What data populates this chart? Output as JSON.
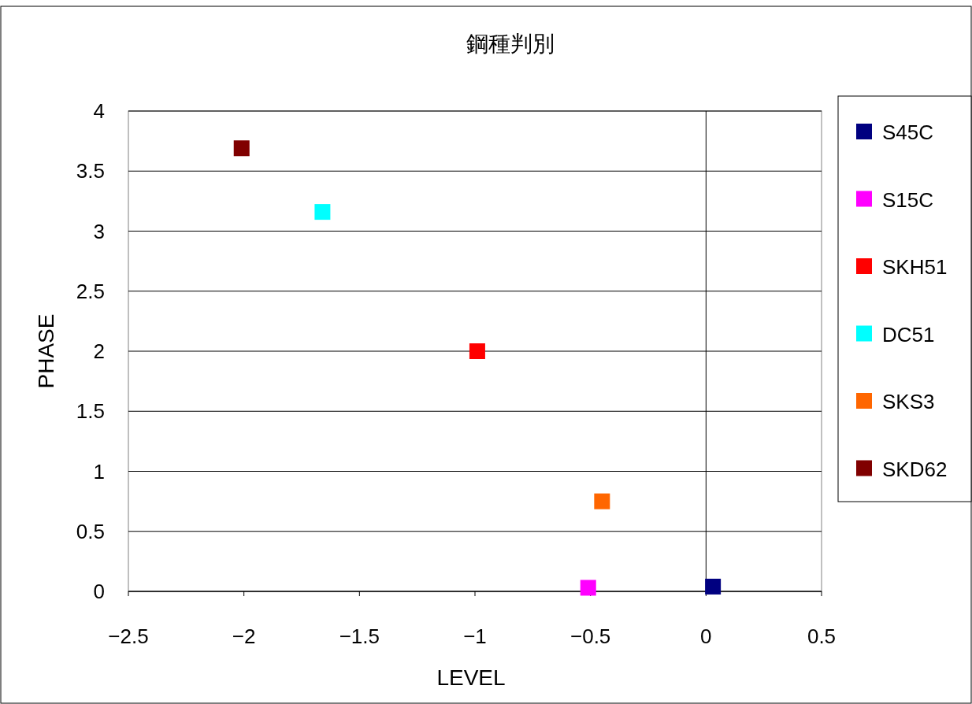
{
  "chart_data": {
    "type": "scatter",
    "title": "鋼種判別",
    "xlabel": "LEVEL",
    "ylabel": "PHASE",
    "xlim": [
      -2.5,
      0.5
    ],
    "xticks": [
      -2.5,
      -2,
      -1.5,
      -1,
      -0.5,
      0,
      0.5
    ],
    "ylim": [
      0,
      4
    ],
    "yticks": [
      0,
      0.5,
      1,
      1.5,
      2,
      2.5,
      3,
      3.5,
      4
    ],
    "grid": "y",
    "legend": "right",
    "marker": "square",
    "ref_lines": [
      {
        "axis": "x",
        "value": 0,
        "color": "#000000"
      }
    ],
    "series": [
      {
        "name": "S45C",
        "color": "#000080",
        "x": [
          0.03
        ],
        "values": [
          0.04
        ]
      },
      {
        "name": "S15C",
        "color": "#ff00ff",
        "x": [
          -0.51
        ],
        "values": [
          0.03
        ]
      },
      {
        "name": "SKH51",
        "color": "#ff0000",
        "x": [
          -0.99
        ],
        "values": [
          2.0
        ]
      },
      {
        "name": "DC51",
        "color": "#00ffff",
        "x": [
          -1.66
        ],
        "values": [
          3.16
        ]
      },
      {
        "name": "SKS3",
        "color": "#ff6600",
        "x": [
          -0.45
        ],
        "values": [
          0.75
        ]
      },
      {
        "name": "SKD62",
        "color": "#800000",
        "x": [
          -2.01
        ],
        "values": [
          3.69
        ]
      }
    ]
  }
}
